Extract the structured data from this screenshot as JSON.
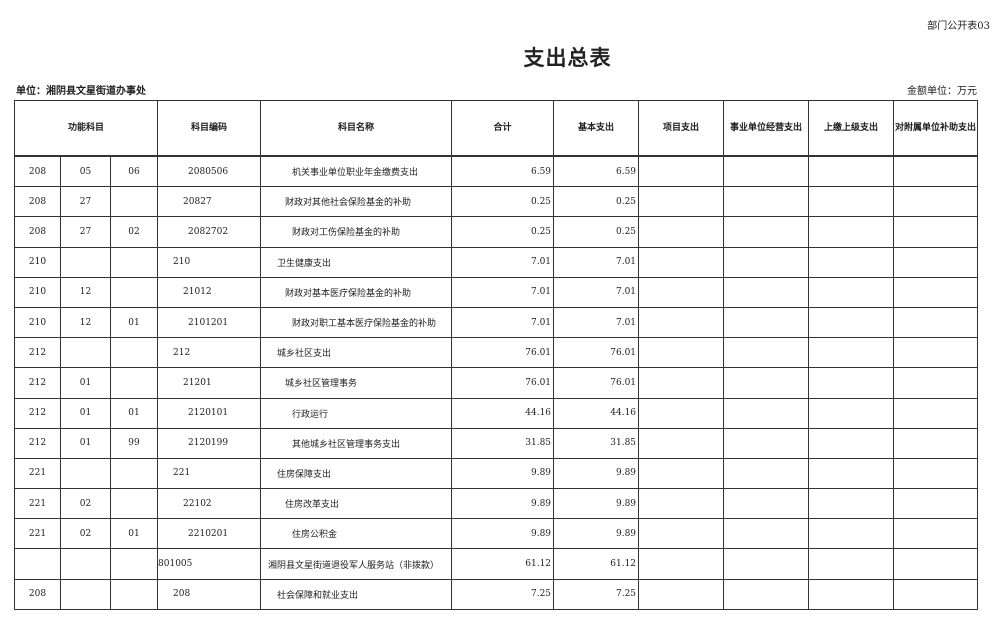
{
  "form_no": "部门公开表03",
  "title": "支出总表",
  "unit_label": "单位：湘阴县文星街道办事处",
  "money_unit": "金额单位：万元",
  "headers": [
    "功能科目",
    "科目编码",
    "科目名称",
    "合计",
    "基本支出",
    "项目支出",
    "事业单位经营支出",
    "上缴上级支出",
    "对附属单位补助支出"
  ],
  "rows": [
    {
      "a": "208",
      "b": "05",
      "c": "06",
      "code": "2080506",
      "name": "机关事业单位职业年金缴费支出",
      "total": "6.59",
      "basic": "6.59",
      "project": "",
      "business": "",
      "upper": "",
      "subsidy": "",
      "level": 3
    },
    {
      "a": "208",
      "b": "27",
      "c": "",
      "code": "20827",
      "name": "财政对其他社会保险基金的补助",
      "total": "0.25",
      "basic": "0.25",
      "project": "",
      "business": "",
      "upper": "",
      "subsidy": "",
      "level": 2
    },
    {
      "a": "208",
      "b": "27",
      "c": "02",
      "code": "2082702",
      "name": "财政对工伤保险基金的补助",
      "total": "0.25",
      "basic": "0.25",
      "project": "",
      "business": "",
      "upper": "",
      "subsidy": "",
      "level": 3
    },
    {
      "a": "210",
      "b": "",
      "c": "",
      "code": "210",
      "name": "卫生健康支出",
      "total": "7.01",
      "basic": "7.01",
      "project": "",
      "business": "",
      "upper": "",
      "subsidy": "",
      "level": 1
    },
    {
      "a": "210",
      "b": "12",
      "c": "",
      "code": "21012",
      "name": "财政对基本医疗保险基金的补助",
      "total": "7.01",
      "basic": "7.01",
      "project": "",
      "business": "",
      "upper": "",
      "subsidy": "",
      "level": 2
    },
    {
      "a": "210",
      "b": "12",
      "c": "01",
      "code": "2101201",
      "name": "财政对职工基本医疗保险基金的补助",
      "total": "7.01",
      "basic": "7.01",
      "project": "",
      "business": "",
      "upper": "",
      "subsidy": "",
      "level": 3
    },
    {
      "a": "212",
      "b": "",
      "c": "",
      "code": "212",
      "name": "城乡社区支出",
      "total": "76.01",
      "basic": "76.01",
      "project": "",
      "business": "",
      "upper": "",
      "subsidy": "",
      "level": 1
    },
    {
      "a": "212",
      "b": "01",
      "c": "",
      "code": "21201",
      "name": "城乡社区管理事务",
      "total": "76.01",
      "basic": "76.01",
      "project": "",
      "business": "",
      "upper": "",
      "subsidy": "",
      "level": 2
    },
    {
      "a": "212",
      "b": "01",
      "c": "01",
      "code": "2120101",
      "name": "行政运行",
      "total": "44.16",
      "basic": "44.16",
      "project": "",
      "business": "",
      "upper": "",
      "subsidy": "",
      "level": 3
    },
    {
      "a": "212",
      "b": "01",
      "c": "99",
      "code": "2120199",
      "name": "其他城乡社区管理事务支出",
      "total": "31.85",
      "basic": "31.85",
      "project": "",
      "business": "",
      "upper": "",
      "subsidy": "",
      "level": 3
    },
    {
      "a": "221",
      "b": "",
      "c": "",
      "code": "221",
      "name": "住房保障支出",
      "total": "9.89",
      "basic": "9.89",
      "project": "",
      "business": "",
      "upper": "",
      "subsidy": "",
      "level": 1
    },
    {
      "a": "221",
      "b": "02",
      "c": "",
      "code": "22102",
      "name": "住房改革支出",
      "total": "9.89",
      "basic": "9.89",
      "project": "",
      "business": "",
      "upper": "",
      "subsidy": "",
      "level": 2
    },
    {
      "a": "221",
      "b": "02",
      "c": "01",
      "code": "2210201",
      "name": "住房公积金",
      "total": "9.89",
      "basic": "9.89",
      "project": "",
      "business": "",
      "upper": "",
      "subsidy": "",
      "level": 3
    },
    {
      "a": "",
      "b": "",
      "c": "",
      "code": "801005",
      "name": "湘阴县文星街道退役军人服务站（非拨款）",
      "total": "61.12",
      "basic": "61.12",
      "project": "",
      "business": "",
      "upper": "",
      "subsidy": "",
      "level": 0
    },
    {
      "a": "208",
      "b": "",
      "c": "",
      "code": "208",
      "name": "社会保障和就业支出",
      "total": "7.25",
      "basic": "7.25",
      "project": "",
      "business": "",
      "upper": "",
      "subsidy": "",
      "level": 1
    }
  ]
}
